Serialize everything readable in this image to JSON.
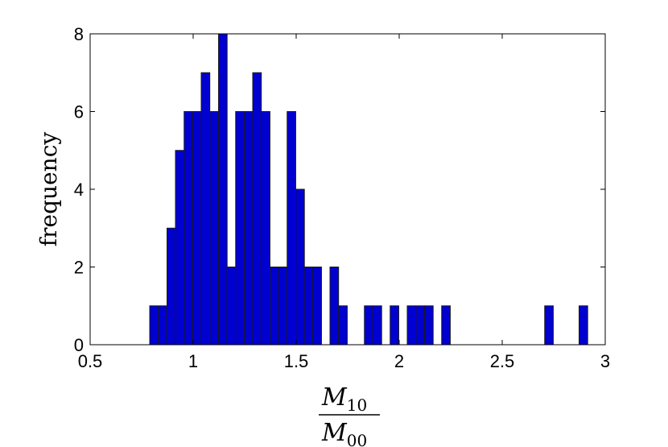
{
  "chart_data": {
    "type": "bar",
    "ylabel": "frequency",
    "xlabel": {
      "numerator": {
        "base": "M",
        "sub": "10"
      },
      "denominator": {
        "base": "M",
        "sub": "00"
      }
    },
    "xlim": [
      0.5,
      3
    ],
    "ylim": [
      0,
      8
    ],
    "xticks": [
      "0.5",
      "1",
      "1.5",
      "2",
      "2.5",
      "3"
    ],
    "yticks": [
      "0",
      "2",
      "4",
      "6",
      "8"
    ],
    "bin_width": 0.0417,
    "x": [
      0.81,
      0.852,
      0.894,
      0.935,
      0.977,
      1.019,
      1.06,
      1.102,
      1.144,
      1.185,
      1.227,
      1.269,
      1.31,
      1.352,
      1.394,
      1.435,
      1.477,
      1.519,
      1.56,
      1.602,
      1.685,
      1.727,
      1.852,
      1.894,
      1.977,
      2.06,
      2.102,
      2.144,
      2.227,
      2.727,
      2.894
    ],
    "values": [
      1,
      1,
      3,
      5,
      6,
      6,
      7,
      6,
      8,
      2,
      6,
      6,
      7,
      6,
      2,
      2,
      6,
      4,
      2,
      2,
      2,
      1,
      1,
      1,
      1,
      1,
      1,
      1,
      1,
      1,
      1
    ],
    "bar_color": "#0000d0",
    "edge_color": "#1a1a1a",
    "grid": false,
    "legend": "none"
  }
}
